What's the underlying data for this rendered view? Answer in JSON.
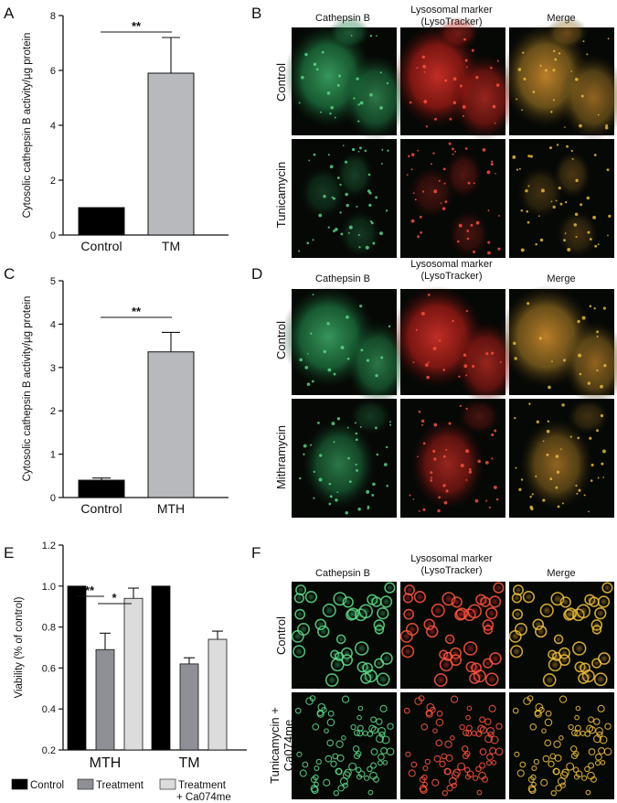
{
  "panels": {
    "A": "A",
    "B": "B",
    "C": "C",
    "D": "D",
    "E": "E",
    "F": "F"
  },
  "chart_data": [
    {
      "panel": "A",
      "type": "bar",
      "categories": [
        "Control",
        "TM"
      ],
      "values": [
        1.0,
        5.9
      ],
      "errors": [
        0.0,
        1.3
      ],
      "colors": [
        "#000000",
        "#b7b9bd"
      ],
      "ylabel": "Cytosolic cathepsin B activity/µg protein",
      "ylim": [
        0,
        8
      ],
      "yticks": [
        "0",
        "2",
        "4",
        "6",
        "8"
      ],
      "significance": "**"
    },
    {
      "panel": "C",
      "type": "bar",
      "categories": [
        "Control",
        "MTH"
      ],
      "values": [
        0.4,
        3.36
      ],
      "errors": [
        0.05,
        0.45
      ],
      "colors": [
        "#000000",
        "#b7b9bd"
      ],
      "ylabel": "Cytosolic cathepsin B activity/µg protein",
      "ylim": [
        0,
        5
      ],
      "yticks": [
        "0",
        "1",
        "2",
        "3",
        "4",
        "5"
      ],
      "significance": "**"
    },
    {
      "panel": "E",
      "type": "bar",
      "categories": [
        "MTH",
        "TM"
      ],
      "series": [
        {
          "name": "Control",
          "values": [
            1.0,
            1.0
          ],
          "errors": [
            0,
            0
          ],
          "color": "#000000"
        },
        {
          "name": "Treatment",
          "values": [
            0.69,
            0.62
          ],
          "errors": [
            0.08,
            0.03
          ],
          "color": "#8f9096"
        },
        {
          "name": "Treatment + Ca074me",
          "values": [
            0.94,
            0.74
          ],
          "errors": [
            0.05,
            0.04
          ],
          "color": "#dcdcdc"
        }
      ],
      "ylabel": "Viability (% of control)",
      "ylim": [
        0.2,
        1.2
      ],
      "yticks": [
        "0.2",
        "0.4",
        "0.6",
        "0.8",
        "1.0",
        "1.2"
      ],
      "significance": [
        "**",
        "*"
      ],
      "legend_placement": "bottom",
      "legend_labels": [
        "Control",
        "Treatment",
        "Treatment",
        "+ Ca074me"
      ]
    }
  ],
  "micrographs": {
    "B": {
      "headers": [
        "Cathepsin B",
        "Lysosomal marker",
        "(LysoTracker)",
        "Merge"
      ],
      "rows": [
        "Control",
        "Tunicamycin"
      ]
    },
    "D": {
      "headers": [
        "Cathepsin B",
        "Lysosomal marker",
        "(LysoTracker)",
        "Merge"
      ],
      "rows": [
        "Control",
        "Mithramycin"
      ]
    },
    "F": {
      "headers": [
        "Cathepsin B",
        "Lysosomal marker",
        "(LysoTracker)",
        "Merge"
      ],
      "rows": [
        "Control",
        "Tunicamycin +",
        "Ca074me"
      ]
    }
  }
}
